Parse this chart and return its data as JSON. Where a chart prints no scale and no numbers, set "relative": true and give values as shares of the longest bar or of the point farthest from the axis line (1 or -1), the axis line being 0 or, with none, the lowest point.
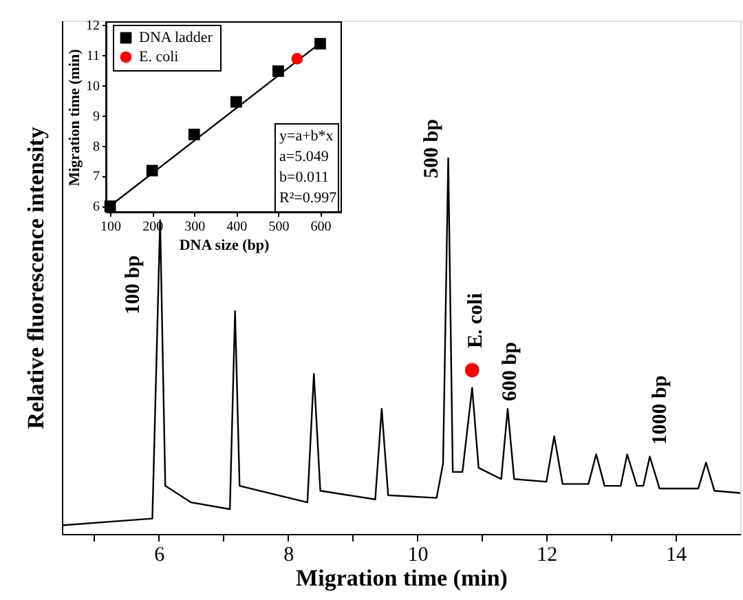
{
  "chart_data": [
    {
      "type": "line",
      "xlabel": "Migration time (min)",
      "ylabel": "Relative fluorescence intensity",
      "relative": true,
      "tick_labels": "x",
      "grid": false,
      "xlim": [
        4.5,
        15
      ],
      "xticks": [
        {
          "value": 5,
          "label": null
        },
        6,
        {
          "value": 7,
          "label": null
        },
        8,
        {
          "value": 9,
          "label": null
        },
        10,
        {
          "value": 11,
          "label": null
        },
        12,
        {
          "value": 13,
          "label": null
        },
        14
      ],
      "series": [
        {
          "color": "#000000",
          "line_style": "solid",
          "x": [
            4.5,
            5.9,
            6.02,
            6.1,
            6.5,
            7.1,
            7.18,
            7.25,
            8.3,
            8.4,
            8.5,
            9.35,
            9.45,
            9.55,
            10.3,
            10.4,
            10.48,
            10.55,
            10.7,
            10.85,
            10.95,
            11.3,
            11.4,
            11.5,
            12.0,
            12.12,
            12.25,
            12.65,
            12.77,
            12.9,
            13.15,
            13.25,
            13.4,
            13.5,
            13.6,
            13.75,
            14.35,
            14.47,
            14.6,
            15.0
          ],
          "values": [
            0.023,
            0.041,
            0.835,
            0.128,
            0.084,
            0.066,
            0.593,
            0.128,
            0.084,
            0.426,
            0.115,
            0.092,
            0.333,
            0.103,
            0.096,
            0.188,
            1.0,
            0.165,
            0.165,
            0.389,
            0.176,
            0.146,
            0.333,
            0.146,
            0.139,
            0.26,
            0.133,
            0.133,
            0.212,
            0.128,
            0.128,
            0.212,
            0.128,
            0.128,
            0.206,
            0.121,
            0.121,
            0.19,
            0.115,
            0.109
          ]
        },
        {
          "type": "scatter",
          "color": "#ff0000",
          "marker": "circle",
          "x": [
            10.85
          ],
          "values": [
            0.436
          ]
        }
      ],
      "annotations": [
        "100 bp",
        "500 bp",
        "E. coli",
        "600 bp",
        "1000 bp"
      ]
    },
    {
      "type": "scatter",
      "xlabel": "DNA size (bp)",
      "ylabel": "Migration time (min)",
      "grid": false,
      "legend": "top left",
      "xlim": [
        90,
        650
      ],
      "xticks": [
        100,
        200,
        300,
        400,
        500,
        600
      ],
      "ylim": [
        5.8,
        12.1
      ],
      "yticks": [
        6,
        7,
        8,
        9,
        10,
        11,
        12
      ],
      "series": [
        {
          "type": "line",
          "color": "#000000",
          "line_style": "solid",
          "x": [
            100,
            600
          ],
          "values": [
            6.0,
            11.4
          ]
        },
        {
          "name": "DNA ladder",
          "color": "#000000",
          "marker": "square",
          "x": [
            100,
            200,
            300,
            400,
            500,
            600
          ],
          "values": [
            5.99,
            7.17,
            8.37,
            9.45,
            10.47,
            11.38
          ]
        },
        {
          "name": "E. coli",
          "color": "#ff0000",
          "marker": "circle",
          "x": [
            545
          ],
          "values": [
            10.88
          ]
        }
      ],
      "annotations": [
        "y=a+b*x",
        "a=5.049",
        "b=0.011",
        "R²=0.997"
      ]
    }
  ]
}
